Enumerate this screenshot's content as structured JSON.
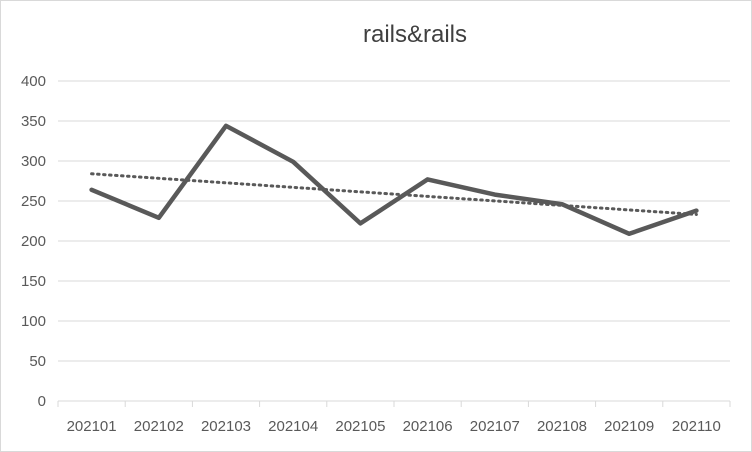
{
  "chart_data": {
    "type": "line",
    "title": "rails&rails",
    "xlabel": "",
    "ylabel": "",
    "categories": [
      "202101",
      "202102",
      "202103",
      "202104",
      "202105",
      "202106",
      "202107",
      "202108",
      "202109",
      "202110"
    ],
    "series": [
      {
        "values": [
          264,
          229,
          344,
          299,
          222,
          277,
          258,
          246,
          209,
          238
        ],
        "color": "#595959"
      }
    ],
    "trendline": {
      "kind": "linear",
      "style": "dotted",
      "color": "#595959"
    },
    "ylim": [
      0,
      400
    ],
    "yticks": [
      0,
      50,
      100,
      150,
      200,
      250,
      300,
      350,
      400
    ],
    "grid": true,
    "legend": "none"
  }
}
